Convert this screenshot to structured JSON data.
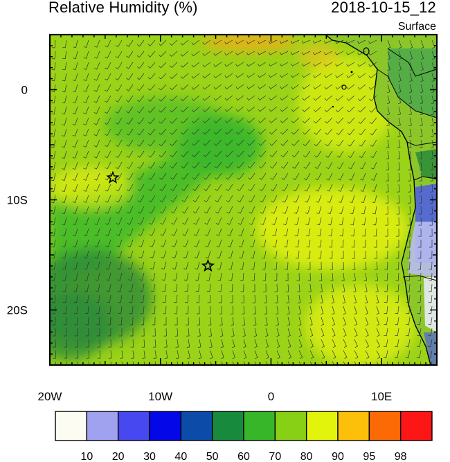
{
  "title": {
    "left": "Relative Humidity (%)",
    "right": "2018-10-15_12"
  },
  "level_label": "Surface",
  "map": {
    "lon_range": [
      -20,
      15
    ],
    "lat_range": [
      -25,
      5
    ],
    "x_ticks": [
      {
        "value": -20,
        "label": "20W"
      },
      {
        "value": -10,
        "label": "10W"
      },
      {
        "value": 0,
        "label": "0"
      },
      {
        "value": 10,
        "label": "10E"
      }
    ],
    "y_ticks": [
      {
        "value": 0,
        "label": "0"
      },
      {
        "value": -10,
        "label": "10S"
      },
      {
        "value": -20,
        "label": "20S"
      }
    ],
    "markers": [
      {
        "name": "star-marker",
        "lon": -14.3,
        "lat": -8.0
      },
      {
        "name": "star-marker",
        "lon": -5.7,
        "lat": -16.0
      }
    ],
    "field_colors": {
      "ocean_main": "#9ad318",
      "ocean_green": "#3cb82b",
      "ocean_dark": "#2a8a3a",
      "humid": "#e4f00c",
      "orange": "#f6a91c",
      "land": "#b5e01a",
      "dry_blue": "#5060e0",
      "dry_light": "#b8bcf0"
    }
  },
  "colorbar": {
    "labels": [
      "10",
      "20",
      "30",
      "40",
      "50",
      "60",
      "70",
      "80",
      "90",
      "95",
      "98"
    ],
    "colors": [
      "#fcfcf2",
      "#a0a2f0",
      "#4848f0",
      "#0408e8",
      "#0c4ca8",
      "#178a3e",
      "#38b62a",
      "#88d016",
      "#e2f40c",
      "#fcc00a",
      "#fc6a06",
      "#fc1616"
    ]
  }
}
